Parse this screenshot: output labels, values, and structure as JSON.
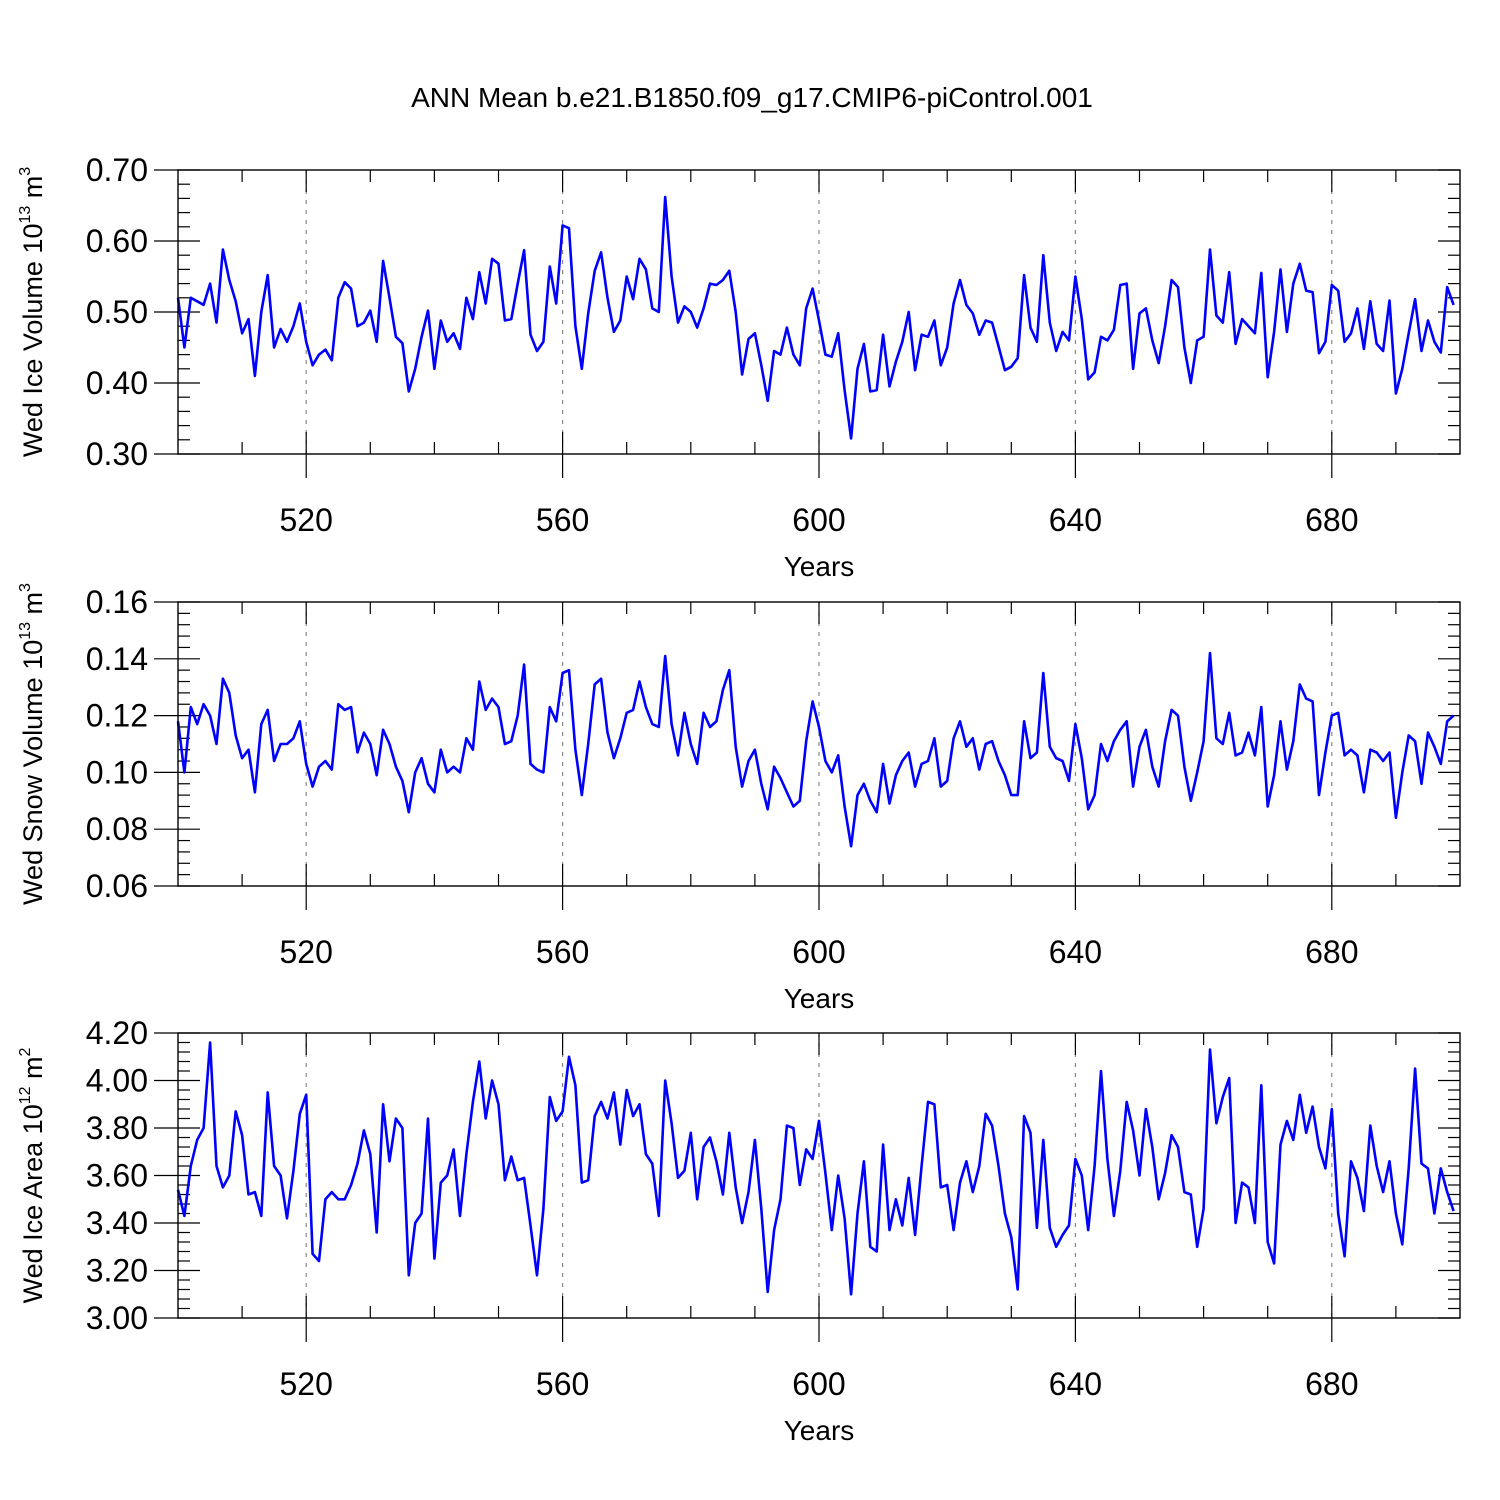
{
  "page_title": "ANN Mean b.e21.B1850.f09_g17.CMIP6-piControl.001",
  "colors": {
    "series": "#0000ff",
    "axis": "#000000",
    "grid": "#888888"
  },
  "chart_data": [
    {
      "type": "line",
      "ylabel_main": "Wed Ice Volume 10",
      "ylabel_exp": "13",
      "ylabel_unit": "m",
      "ylabel_unit_exp": "3",
      "xlabel": "Years",
      "xlim": [
        500,
        700
      ],
      "ylim": [
        0.3,
        0.7
      ],
      "xticks": [
        520,
        560,
        600,
        640,
        680
      ],
      "yticks": [
        0.3,
        0.4,
        0.5,
        0.6,
        0.7
      ],
      "ytick_labels": [
        "0.30",
        "0.40",
        "0.50",
        "0.60",
        "0.70"
      ],
      "grid_x": true,
      "x_start": 500,
      "values": [
        0.52,
        0.45,
        0.52,
        0.515,
        0.51,
        0.54,
        0.485,
        0.588,
        0.545,
        0.515,
        0.47,
        0.49,
        0.41,
        0.5,
        0.552,
        0.45,
        0.476,
        0.458,
        0.48,
        0.512,
        0.458,
        0.425,
        0.44,
        0.447,
        0.432,
        0.52,
        0.542,
        0.533,
        0.48,
        0.485,
        0.502,
        0.458,
        0.572,
        0.52,
        0.465,
        0.456,
        0.388,
        0.42,
        0.465,
        0.502,
        0.42,
        0.488,
        0.458,
        0.47,
        0.448,
        0.52,
        0.49,
        0.556,
        0.512,
        0.575,
        0.568,
        0.488,
        0.49,
        0.54,
        0.587,
        0.468,
        0.445,
        0.458,
        0.564,
        0.512,
        0.622,
        0.618,
        0.48,
        0.42,
        0.498,
        0.558,
        0.584,
        0.52,
        0.472,
        0.488,
        0.55,
        0.518,
        0.575,
        0.56,
        0.505,
        0.5,
        0.662,
        0.55,
        0.485,
        0.508,
        0.5,
        0.478,
        0.505,
        0.54,
        0.538,
        0.545,
        0.558,
        0.5,
        0.412,
        0.462,
        0.47,
        0.425,
        0.375,
        0.445,
        0.44,
        0.478,
        0.44,
        0.425,
        0.505,
        0.533,
        0.488,
        0.44,
        0.437,
        0.47,
        0.39,
        0.322,
        0.42,
        0.455,
        0.388,
        0.39,
        0.468,
        0.395,
        0.43,
        0.458,
        0.5,
        0.418,
        0.468,
        0.465,
        0.488,
        0.425,
        0.45,
        0.512,
        0.545,
        0.51,
        0.498,
        0.468,
        0.488,
        0.485,
        0.452,
        0.418,
        0.423,
        0.435,
        0.552,
        0.478,
        0.458,
        0.58,
        0.485,
        0.445,
        0.472,
        0.46,
        0.55,
        0.49,
        0.405,
        0.415,
        0.465,
        0.46,
        0.475,
        0.538,
        0.54,
        0.42,
        0.498,
        0.505,
        0.46,
        0.428,
        0.48,
        0.545,
        0.535,
        0.45,
        0.4,
        0.46,
        0.465,
        0.588,
        0.495,
        0.485,
        0.556,
        0.455,
        0.49,
        0.48,
        0.47,
        0.555,
        0.408,
        0.472,
        0.56,
        0.472,
        0.54,
        0.568,
        0.53,
        0.528,
        0.442,
        0.458,
        0.538,
        0.53,
        0.458,
        0.47,
        0.505,
        0.448,
        0.515,
        0.455,
        0.445,
        0.516,
        0.385,
        0.42,
        0.47,
        0.518,
        0.445,
        0.488,
        0.458,
        0.443,
        0.535,
        0.51
      ]
    },
    {
      "type": "line",
      "ylabel_main": "Wed Snow Volume 10",
      "ylabel_exp": "13",
      "ylabel_unit": "m",
      "ylabel_unit_exp": "3",
      "xlabel": "Years",
      "xlim": [
        500,
        700
      ],
      "ylim": [
        0.06,
        0.16
      ],
      "xticks": [
        520,
        560,
        600,
        640,
        680
      ],
      "yticks": [
        0.06,
        0.08,
        0.1,
        0.12,
        0.14,
        0.16
      ],
      "ytick_labels": [
        "0.06",
        "0.08",
        "0.10",
        "0.12",
        "0.14",
        "0.16"
      ],
      "grid_x": true,
      "x_start": 500,
      "values": [
        0.118,
        0.1,
        0.123,
        0.117,
        0.124,
        0.12,
        0.11,
        0.133,
        0.128,
        0.113,
        0.105,
        0.108,
        0.093,
        0.117,
        0.122,
        0.104,
        0.11,
        0.11,
        0.112,
        0.118,
        0.103,
        0.095,
        0.102,
        0.104,
        0.101,
        0.124,
        0.122,
        0.123,
        0.107,
        0.114,
        0.11,
        0.099,
        0.115,
        0.11,
        0.102,
        0.097,
        0.086,
        0.1,
        0.105,
        0.096,
        0.093,
        0.108,
        0.1,
        0.102,
        0.1,
        0.112,
        0.108,
        0.132,
        0.122,
        0.126,
        0.123,
        0.11,
        0.111,
        0.12,
        0.138,
        0.103,
        0.101,
        0.1,
        0.123,
        0.118,
        0.135,
        0.136,
        0.108,
        0.092,
        0.11,
        0.131,
        0.133,
        0.114,
        0.105,
        0.112,
        0.121,
        0.122,
        0.132,
        0.123,
        0.117,
        0.116,
        0.141,
        0.117,
        0.106,
        0.121,
        0.11,
        0.103,
        0.121,
        0.116,
        0.118,
        0.129,
        0.136,
        0.109,
        0.095,
        0.104,
        0.108,
        0.096,
        0.087,
        0.102,
        0.098,
        0.093,
        0.088,
        0.09,
        0.111,
        0.125,
        0.116,
        0.104,
        0.1,
        0.106,
        0.088,
        0.074,
        0.092,
        0.096,
        0.09,
        0.086,
        0.103,
        0.089,
        0.099,
        0.104,
        0.107,
        0.095,
        0.103,
        0.104,
        0.112,
        0.095,
        0.097,
        0.112,
        0.118,
        0.109,
        0.112,
        0.101,
        0.11,
        0.111,
        0.104,
        0.099,
        0.092,
        0.092,
        0.118,
        0.105,
        0.107,
        0.135,
        0.109,
        0.105,
        0.104,
        0.097,
        0.117,
        0.105,
        0.087,
        0.092,
        0.11,
        0.104,
        0.111,
        0.115,
        0.118,
        0.095,
        0.109,
        0.115,
        0.102,
        0.095,
        0.111,
        0.122,
        0.12,
        0.102,
        0.09,
        0.1,
        0.111,
        0.142,
        0.112,
        0.11,
        0.121,
        0.106,
        0.107,
        0.114,
        0.106,
        0.123,
        0.088,
        0.099,
        0.118,
        0.101,
        0.111,
        0.131,
        0.126,
        0.125,
        0.092,
        0.107,
        0.12,
        0.121,
        0.106,
        0.108,
        0.106,
        0.093,
        0.108,
        0.107,
        0.104,
        0.107,
        0.084,
        0.1,
        0.113,
        0.111,
        0.096,
        0.114,
        0.109,
        0.103,
        0.118,
        0.12
      ]
    },
    {
      "type": "line",
      "ylabel_main": "Wed Ice Area 10",
      "ylabel_exp": "12",
      "ylabel_unit": "m",
      "ylabel_unit_exp": "2",
      "xlabel": "Years",
      "xlim": [
        500,
        700
      ],
      "ylim": [
        3.0,
        4.2
      ],
      "xticks": [
        520,
        560,
        600,
        640,
        680
      ],
      "yticks": [
        3.0,
        3.2,
        3.4,
        3.6,
        3.8,
        4.0,
        4.2
      ],
      "ytick_labels": [
        "3.00",
        "3.20",
        "3.40",
        "3.60",
        "3.80",
        "4.00",
        "4.20"
      ],
      "grid_x": true,
      "x_start": 500,
      "values": [
        3.54,
        3.43,
        3.64,
        3.75,
        3.8,
        4.16,
        3.64,
        3.55,
        3.6,
        3.87,
        3.77,
        3.52,
        3.53,
        3.43,
        3.95,
        3.64,
        3.6,
        3.42,
        3.62,
        3.86,
        3.94,
        3.27,
        3.24,
        3.5,
        3.53,
        3.5,
        3.5,
        3.56,
        3.65,
        3.79,
        3.69,
        3.36,
        3.9,
        3.66,
        3.84,
        3.8,
        3.18,
        3.4,
        3.44,
        3.84,
        3.25,
        3.57,
        3.6,
        3.71,
        3.43,
        3.69,
        3.91,
        4.08,
        3.84,
        4.0,
        3.9,
        3.58,
        3.68,
        3.58,
        3.59,
        3.39,
        3.18,
        3.46,
        3.93,
        3.83,
        3.87,
        4.1,
        3.98,
        3.57,
        3.58,
        3.85,
        3.91,
        3.84,
        3.95,
        3.73,
        3.96,
        3.85,
        3.9,
        3.69,
        3.65,
        3.43,
        4.0,
        3.82,
        3.59,
        3.62,
        3.78,
        3.5,
        3.72,
        3.76,
        3.66,
        3.52,
        3.78,
        3.55,
        3.4,
        3.53,
        3.75,
        3.46,
        3.11,
        3.37,
        3.5,
        3.81,
        3.8,
        3.56,
        3.71,
        3.67,
        3.83,
        3.61,
        3.37,
        3.6,
        3.42,
        3.1,
        3.44,
        3.66,
        3.3,
        3.28,
        3.73,
        3.37,
        3.5,
        3.39,
        3.59,
        3.35,
        3.64,
        3.91,
        3.9,
        3.55,
        3.56,
        3.37,
        3.57,
        3.66,
        3.53,
        3.64,
        3.86,
        3.81,
        3.64,
        3.44,
        3.34,
        3.12,
        3.85,
        3.78,
        3.38,
        3.75,
        3.38,
        3.3,
        3.35,
        3.39,
        3.67,
        3.6,
        3.37,
        3.64,
        4.04,
        3.67,
        3.43,
        3.62,
        3.91,
        3.79,
        3.6,
        3.88,
        3.72,
        3.5,
        3.61,
        3.77,
        3.72,
        3.53,
        3.52,
        3.3,
        3.46,
        4.13,
        3.82,
        3.93,
        4.01,
        3.4,
        3.57,
        3.55,
        3.4,
        3.98,
        3.32,
        3.23,
        3.73,
        3.83,
        3.75,
        3.94,
        3.78,
        3.89,
        3.72,
        3.63,
        3.88,
        3.44,
        3.26,
        3.66,
        3.59,
        3.45,
        3.81,
        3.64,
        3.53,
        3.66,
        3.44,
        3.31,
        3.63,
        4.05,
        3.65,
        3.63,
        3.44,
        3.63,
        3.53,
        3.45
      ]
    }
  ]
}
